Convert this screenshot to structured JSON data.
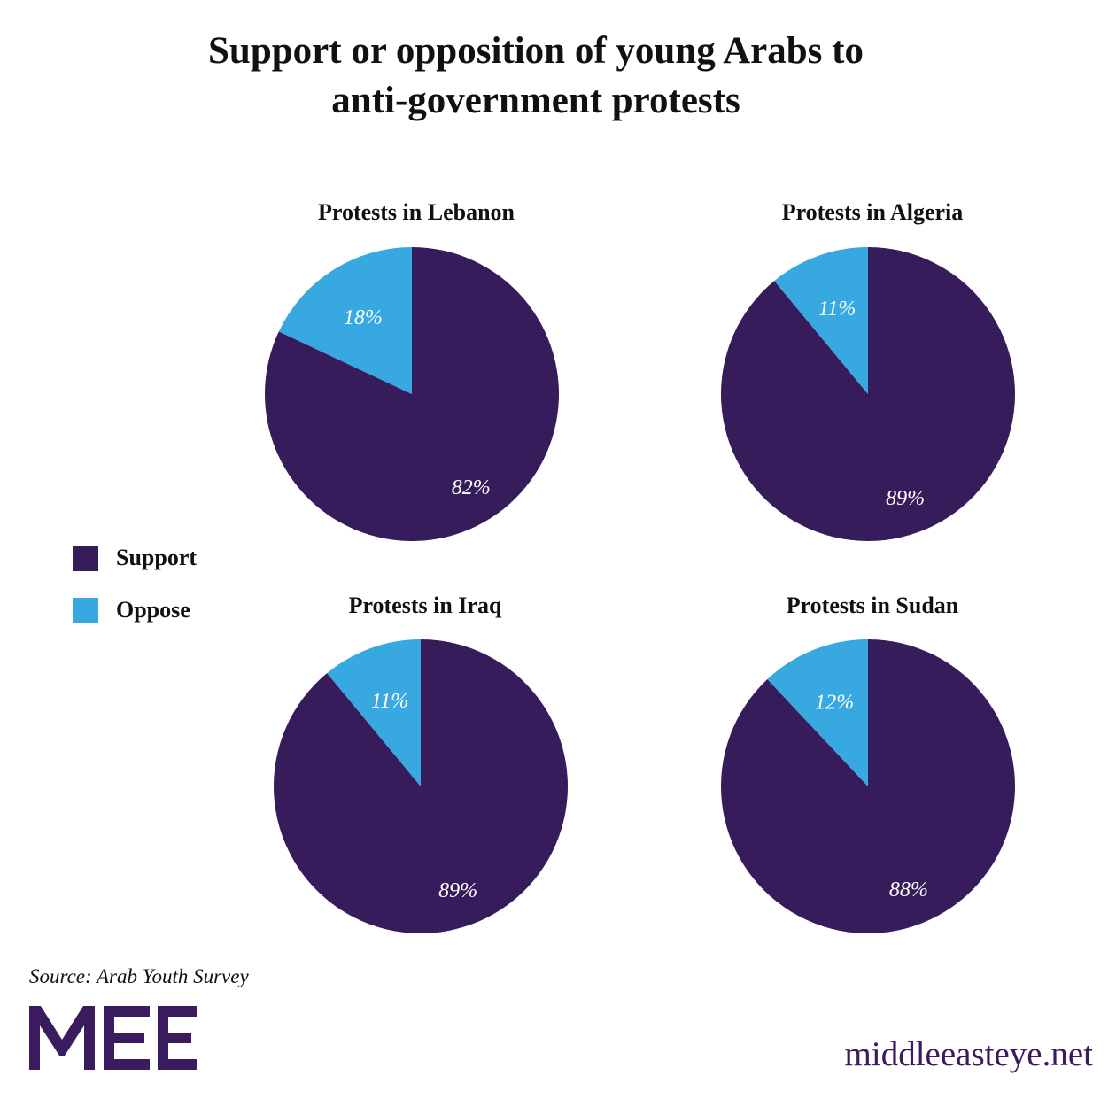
{
  "title_line1": "Support or opposition of young Arabs to",
  "title_line2": "anti-government protests",
  "colors": {
    "support": "#371c5c",
    "oppose": "#37a8e0"
  },
  "legend": [
    {
      "key": "support",
      "label": "Support"
    },
    {
      "key": "oppose",
      "label": "Oppose"
    }
  ],
  "chart_data": [
    {
      "type": "pie",
      "title": "Protests in Lebanon",
      "categories": [
        "Support",
        "Oppose"
      ],
      "values": [
        82,
        18
      ],
      "labels": [
        "82%",
        "18%"
      ]
    },
    {
      "type": "pie",
      "title": "Protests in Algeria",
      "categories": [
        "Support",
        "Oppose"
      ],
      "values": [
        89,
        11
      ],
      "labels": [
        "89%",
        "11%"
      ]
    },
    {
      "type": "pie",
      "title": "Protests in Iraq",
      "categories": [
        "Support",
        "Oppose"
      ],
      "values": [
        89,
        11
      ],
      "labels": [
        "89%",
        "11%"
      ]
    },
    {
      "type": "pie",
      "title": "Protests in Sudan",
      "categories": [
        "Support",
        "Oppose"
      ],
      "values": [
        88,
        12
      ],
      "labels": [
        "88%",
        "12%"
      ]
    }
  ],
  "source": "Source: Arab Youth Survey",
  "logo_text": "MEE",
  "website": "middleeasteye.net"
}
